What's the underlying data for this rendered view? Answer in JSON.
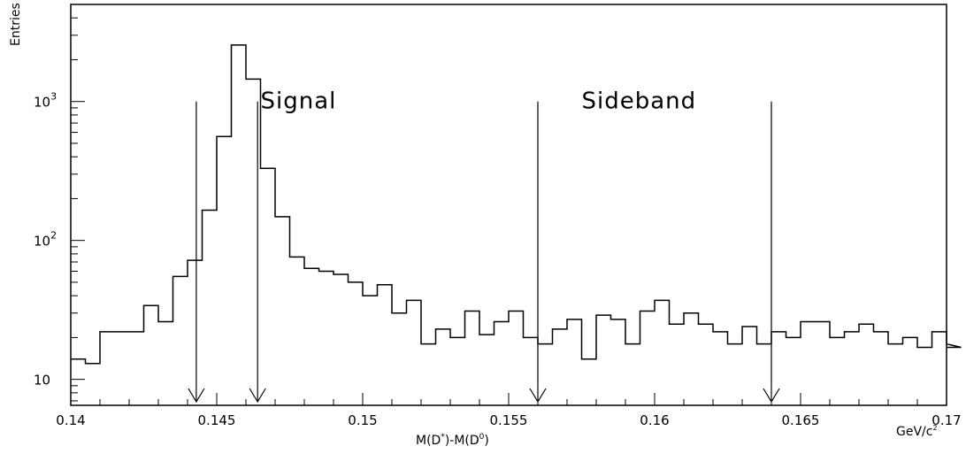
{
  "chart_data": {
    "type": "histogram",
    "y_scale": "log",
    "xlim": [
      0.14,
      0.17
    ],
    "ylim": [
      6.5,
      5000
    ],
    "bin_width": 0.0005,
    "bin_start": 0.14,
    "values": [
      14,
      13,
      22,
      22,
      22,
      34,
      26,
      55,
      72,
      165,
      560,
      2550,
      1450,
      330,
      148,
      76,
      63,
      60,
      57,
      50,
      40,
      48,
      30,
      37,
      18,
      23,
      20,
      31,
      21,
      26,
      31,
      20,
      18,
      23,
      27,
      14,
      29,
      27,
      18,
      31,
      37,
      25,
      30,
      25,
      22,
      18,
      24,
      18,
      22,
      20,
      26,
      26,
      20,
      22,
      25,
      22,
      18,
      20,
      17,
      22,
      18,
      17
    ],
    "x_ticks": [
      "0.14",
      "0.145",
      "0.15",
      "0.155",
      "0.16",
      "0.165",
      "0.17"
    ],
    "x_tick_values": [
      0.14,
      0.145,
      0.15,
      0.155,
      0.16,
      0.165,
      0.17
    ],
    "y_ticks": [
      {
        "value": 10,
        "base": "10",
        "exp": ""
      },
      {
        "value": 100,
        "base": "10",
        "exp": "2"
      },
      {
        "value": 1000,
        "base": "10",
        "exp": "3"
      }
    ],
    "ylabel": "Entries",
    "xlabel": "M(D*)-M(D0)",
    "xlabel_parts": {
      "m1": "M(D",
      "sup1": "*",
      "mid": ")-M(D",
      "sup2": "0",
      "end": ")"
    },
    "x_unit": {
      "base": "GeV/c",
      "sup": "2"
    },
    "cut_lines": [
      0.1443,
      0.1464,
      0.156,
      0.164
    ],
    "cut_line_top": 1000,
    "annotations": [
      {
        "text": "Signal",
        "x": 0.1465,
        "y": 1000
      },
      {
        "text": "Sideband",
        "x": 0.1575,
        "y": 1000
      }
    ]
  }
}
